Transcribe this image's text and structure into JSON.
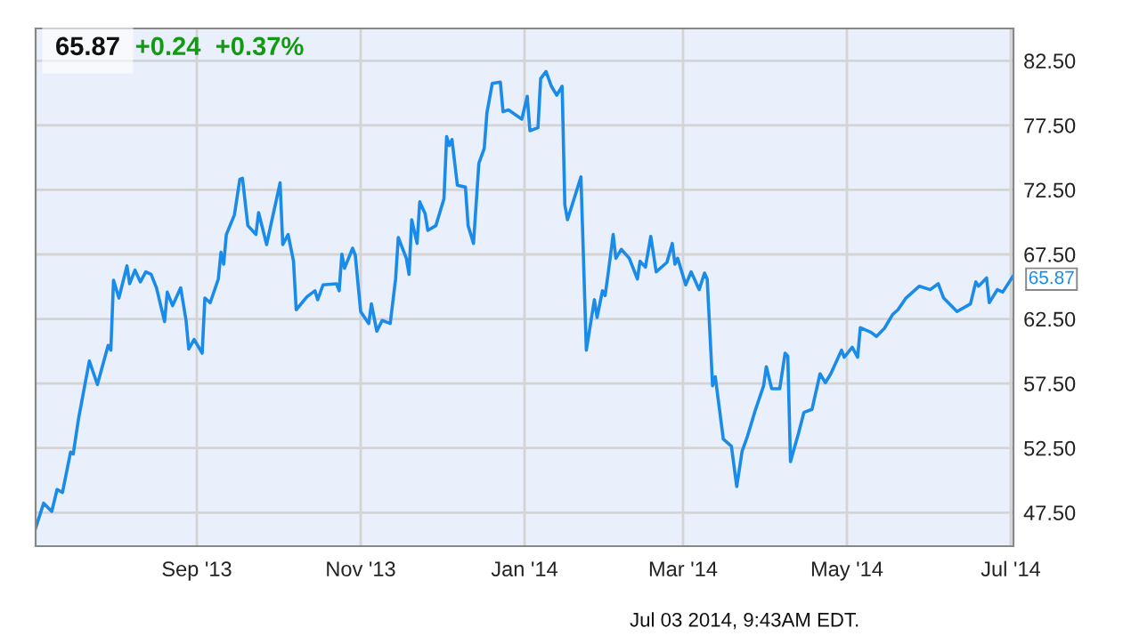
{
  "chart_data": {
    "type": "line",
    "title": "65.87",
    "subtitle": "+0.24  +0.37%",
    "xlim": [
      "2013-07-03",
      "2014-07-02"
    ],
    "ylim": [
      44.9,
      85
    ],
    "xticks": [
      {
        "value": "2013-09-01",
        "label": "Sep '13"
      },
      {
        "value": "2013-11-01",
        "label": "Nov '13"
      },
      {
        "value": "2014-01-01",
        "label": "Jan '14"
      },
      {
        "value": "2014-03-01",
        "label": "Mar '14"
      },
      {
        "value": "2014-05-01",
        "label": "May '14"
      },
      {
        "value": "2014-07-01",
        "label": "Jul '14"
      }
    ],
    "yticks": [
      {
        "value": 47.5,
        "label": "47.50"
      },
      {
        "value": 52.5,
        "label": "52.50"
      },
      {
        "value": 57.5,
        "label": "57.50"
      },
      {
        "value": 62.5,
        "label": "62.50"
      },
      {
        "value": 67.5,
        "label": "67.50"
      },
      {
        "value": 72.5,
        "label": "72.50"
      },
      {
        "value": 77.5,
        "label": "77.50"
      },
      {
        "value": 82.5,
        "label": "82.50"
      }
    ],
    "grid": true,
    "legend": false,
    "marker": "none",
    "line_style": "solid",
    "annotations": [
      {
        "text": "65.87",
        "x": "2014-07-02",
        "y": 65.87
      },
      "Jul 03 2014, 9:43AM EDT."
    ],
    "series": [
      {
        "color": "#1a8be8",
        "x": [
          "2013-07-03",
          "2013-07-06",
          "2013-07-09",
          "2013-07-11",
          "2013-07-13",
          "2013-07-16",
          "2013-07-17",
          "2013-07-19",
          "2013-07-23",
          "2013-07-26",
          "2013-07-30",
          "2013-07-31",
          "2013-08-01",
          "2013-08-03",
          "2013-08-06",
          "2013-08-07",
          "2013-08-09",
          "2013-08-11",
          "2013-08-13",
          "2013-08-15",
          "2013-08-17",
          "2013-08-20",
          "2013-08-21",
          "2013-08-23",
          "2013-08-26",
          "2013-08-28",
          "2013-08-29",
          "2013-08-31",
          "2013-09-03",
          "2013-09-04",
          "2013-09-06",
          "2013-09-09",
          "2013-09-10",
          "2013-09-11",
          "2013-09-12",
          "2013-09-15",
          "2013-09-17",
          "2013-09-18",
          "2013-09-20",
          "2013-09-23",
          "2013-09-24",
          "2013-09-27",
          "2013-09-29",
          "2013-10-02",
          "2013-10-03",
          "2013-10-05",
          "2013-10-07",
          "2013-10-08",
          "2013-10-12",
          "2013-10-15",
          "2013-10-16",
          "2013-10-18",
          "2013-10-23",
          "2013-10-24",
          "2013-10-25",
          "2013-10-26",
          "2013-10-29",
          "2013-10-30",
          "2013-11-01",
          "2013-11-04",
          "2013-11-05",
          "2013-11-07",
          "2013-11-09",
          "2013-11-12",
          "2013-11-14",
          "2013-11-15",
          "2013-11-18",
          "2013-11-19",
          "2013-11-20",
          "2013-11-22",
          "2013-11-23",
          "2013-11-25",
          "2013-11-26",
          "2013-11-29",
          "2013-12-02",
          "2013-12-03",
          "2013-12-04",
          "2013-12-05",
          "2013-12-07",
          "2013-12-10",
          "2013-12-11",
          "2013-12-13",
          "2013-12-15",
          "2013-12-17",
          "2013-12-18",
          "2013-12-20",
          "2013-12-23",
          "2013-12-24",
          "2013-12-26",
          "2013-12-31",
          "2014-01-02",
          "2014-01-03",
          "2014-01-06",
          "2014-01-07",
          "2014-01-09",
          "2014-01-11",
          "2014-01-13",
          "2014-01-15",
          "2014-01-16",
          "2014-01-17",
          "2014-01-22",
          "2014-01-24",
          "2014-01-27",
          "2014-01-28",
          "2014-01-30",
          "2014-01-31",
          "2014-02-01",
          "2014-02-03",
          "2014-02-04",
          "2014-02-06",
          "2014-02-09",
          "2014-02-12",
          "2014-02-13",
          "2014-02-15",
          "2014-02-17",
          "2014-02-19",
          "2014-02-23",
          "2014-02-25",
          "2014-02-26",
          "2014-02-27",
          "2014-03-02",
          "2014-03-04",
          "2014-03-07",
          "2014-03-09",
          "2014-03-10",
          "2014-03-12",
          "2014-03-13",
          "2014-03-16",
          "2014-03-19",
          "2014-03-21",
          "2014-03-23",
          "2014-03-25",
          "2014-03-28",
          "2014-03-31",
          "2014-04-01",
          "2014-04-03",
          "2014-04-06",
          "2014-04-08",
          "2014-04-09",
          "2014-04-10",
          "2014-04-13",
          "2014-04-15",
          "2014-04-18",
          "2014-04-21",
          "2014-04-23",
          "2014-04-25",
          "2014-04-29",
          "2014-04-30",
          "2014-05-03",
          "2014-05-05",
          "2014-05-06",
          "2014-05-10",
          "2014-05-12",
          "2014-05-15",
          "2014-05-18",
          "2014-05-20",
          "2014-05-23",
          "2014-05-28",
          "2014-06-01",
          "2014-06-04",
          "2014-06-06",
          "2014-06-11",
          "2014-06-16",
          "2014-06-18",
          "2014-06-19",
          "2014-06-22",
          "2014-06-23",
          "2014-06-26",
          "2014-06-28",
          "2014-07-02"
        ],
        "values": [
          46.3,
          48.23,
          47.59,
          49.29,
          49.06,
          52.18,
          52.04,
          54.8,
          59.25,
          57.42,
          60.45,
          60.08,
          65.5,
          64.12,
          66.61,
          65.23,
          66.28,
          65.37,
          66.15,
          65.96,
          64.91,
          62.29,
          64.58,
          63.53,
          64.91,
          62.38,
          60.17,
          60.91,
          59.85,
          64.12,
          63.76,
          65.59,
          67.66,
          66.74,
          69.04,
          70.56,
          73.31,
          73.4,
          69.73,
          69.04,
          70.74,
          68.26,
          70.19,
          73.04,
          68.26,
          69.04,
          66.97,
          63.21,
          64.22,
          64.68,
          63.99,
          65.14,
          65.23,
          64.68,
          67.52,
          66.42,
          67.98,
          67.43,
          63.07,
          62.15,
          63.67,
          61.55,
          62.38,
          62.15,
          65.59,
          68.81,
          67.2,
          65.96,
          70.19,
          68.35,
          71.57,
          70.65,
          69.36,
          69.73,
          71.8,
          76.62,
          75.93,
          76.39,
          72.85,
          72.71,
          69.73,
          68.35,
          74.55,
          75.7,
          78.46,
          80.75,
          80.85,
          78.55,
          78.69,
          77.98,
          79.74,
          77.08,
          77.31,
          81.12,
          81.67,
          80.52,
          79.83,
          80.52,
          71.34,
          70.19,
          73.5,
          60.08,
          63.99,
          62.61,
          64.68,
          64.31,
          65.82,
          69.04,
          67.2,
          67.89,
          67.2,
          65.59,
          66.97,
          66.51,
          68.9,
          66.15,
          66.88,
          68.35,
          66.74,
          67.2,
          65.14,
          66.15,
          64.77,
          66.05,
          65.59,
          57.33,
          58.02,
          53.19,
          52.64,
          49.52,
          52.27,
          53.42,
          55.49,
          57.33,
          58.8,
          57.1,
          57.1,
          59.85,
          59.62,
          51.45,
          53.65,
          55.26,
          55.49,
          58.25,
          57.56,
          58.25,
          60.08,
          59.53,
          60.31,
          59.53,
          61.83,
          61.46,
          61.14,
          61.78,
          62.84,
          63.21,
          64.12,
          65.04,
          64.77,
          65.23,
          64.12,
          63.07,
          63.67,
          65.37,
          65.04,
          65.68,
          63.76,
          64.77,
          64.58,
          65.87
        ]
      }
    ]
  }
}
